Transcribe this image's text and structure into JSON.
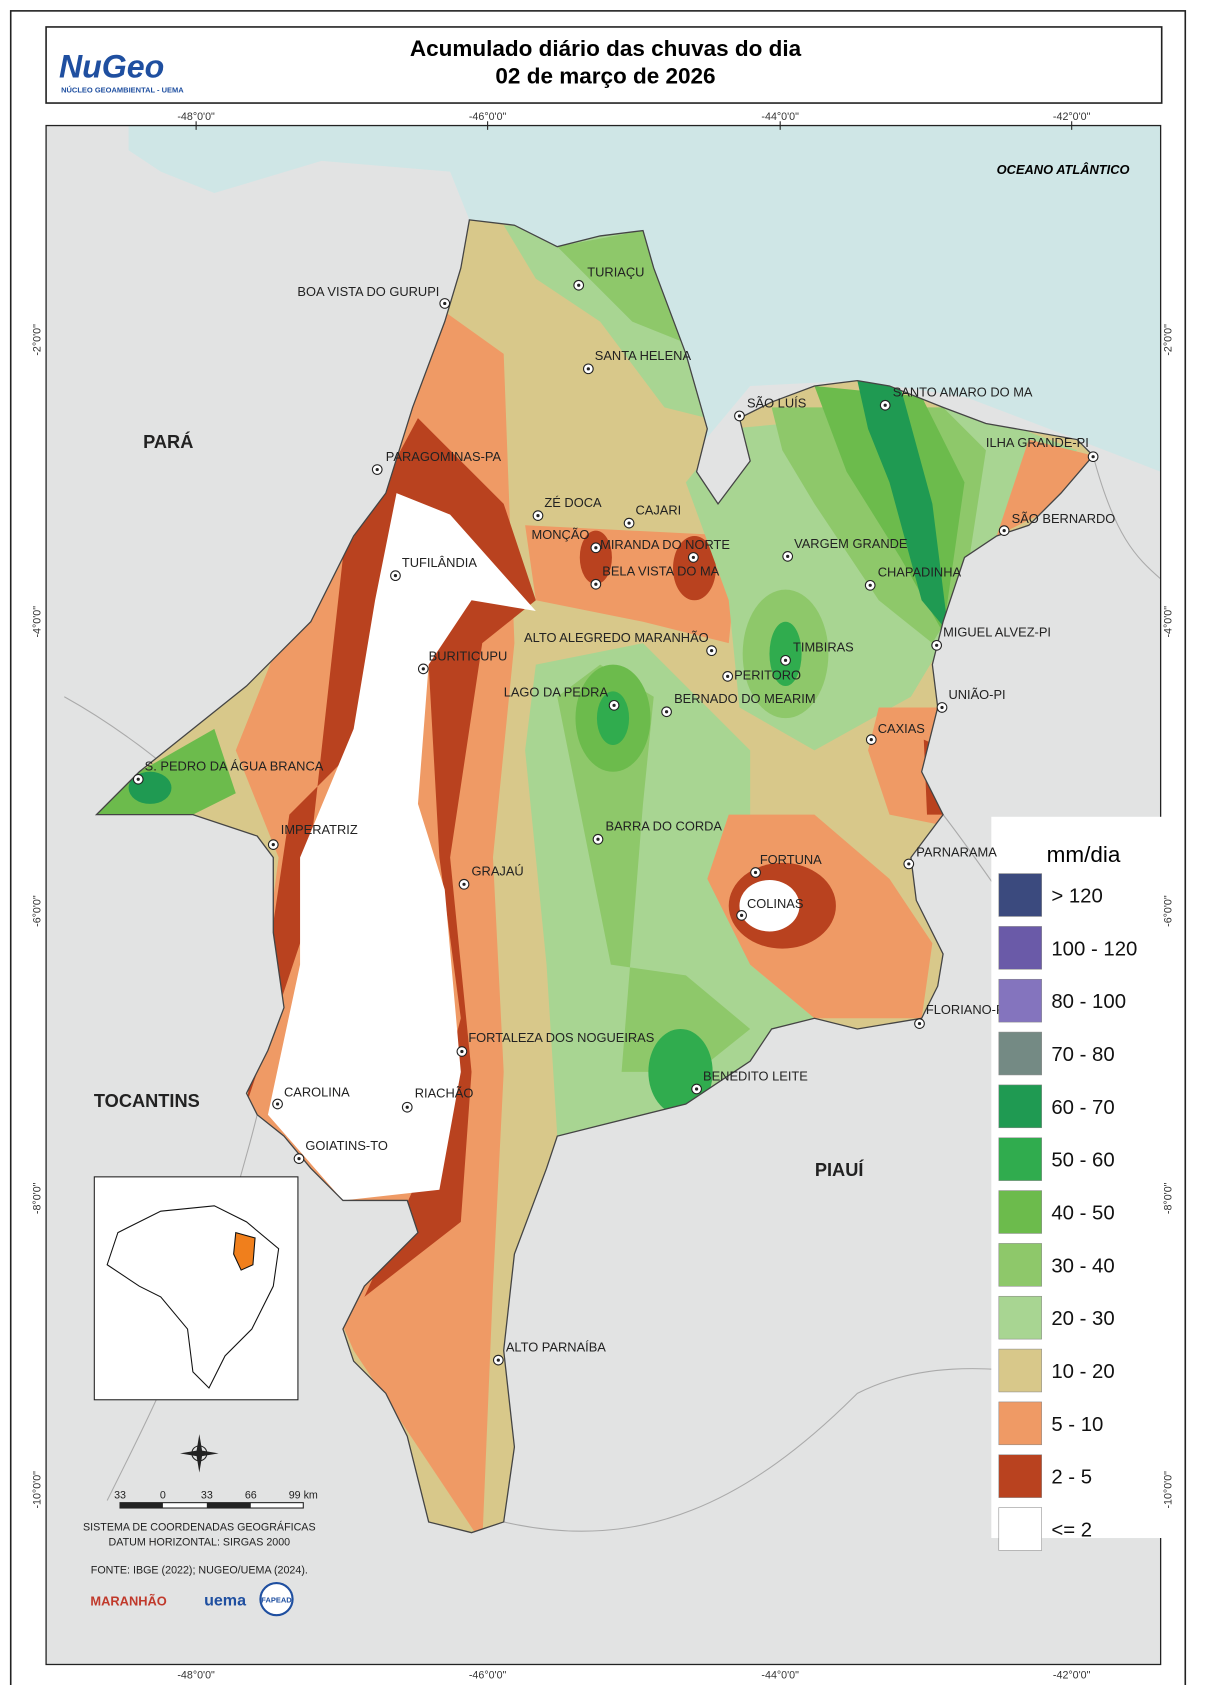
{
  "header": {
    "logo": "NuGeo",
    "logo_subtitle": "NÚCLEO GEOAMBIENTAL - UEMA",
    "title": "Acumulado diário das chuvas do dia",
    "date": "02 de março de 2026"
  },
  "map": {
    "longitude_labels": [
      "-48°0'0\"",
      "-46°0'0\"",
      "-44°0'0\"",
      "-42°0'0\""
    ],
    "latitude_labels": [
      "-2°0'0\"",
      "-4°0'0\"",
      "-6°0'0\"",
      "-8°0'0\"",
      "-10°0'0\""
    ],
    "ocean_label": "OCEANO ATLÂNTICO",
    "state_labels": [
      "PARÁ",
      "TOCANTINS",
      "PIAUÍ"
    ],
    "cities": [
      "TURIAÇU",
      "BOA VISTA DO GURUPI",
      "SANTA HELENA",
      "SÃO LUÍS",
      "SANTO AMARO DO MA",
      "ILHA GRANDE-PI",
      "PARAGOMINAS-PA",
      "ZÉ DOCA",
      "CAJARI",
      "SÃO BERNARDO",
      "MONÇÃO",
      "MIRANDA DO NORTE",
      "VARGEM GRANDE",
      "TUFILÂNDIA",
      "BELA VISTA DO MA",
      "CHAPADINHA",
      "MIGUEL ALVEZ-PI",
      "ALTO ALEGREDO MARANHÃO",
      "TIMBIRAS",
      "BURITICUPU",
      "PERITORO",
      "LAGO DA PEDRA",
      "BERNADO DO MEARIM",
      "UNIÃO-PI",
      "CAXIAS",
      "S. PEDRO DA ÁGUA BRANCA",
      "IMPERATRIZ",
      "BARRA DO CORDA",
      "PARNARAMA",
      "FORTUNA",
      "GRAJAÚ",
      "COLINAS",
      "FLORIANO-PI",
      "FORTALEZA DOS NOGUEIRAS",
      "BENEDITO LEITE",
      "CAROLINA",
      "RIACHÃO",
      "GOIATINS-TO",
      "ALTO PARNAÍBA"
    ]
  },
  "legend": {
    "title": "mm/dia",
    "classes": [
      {
        "label": "> 120",
        "color": "#3b4a7e"
      },
      {
        "label": "100 - 120",
        "color": "#6a5aa8"
      },
      {
        "label": "80 - 100",
        "color": "#8474be"
      },
      {
        "label": "70 - 80",
        "color": "#748a84"
      },
      {
        "label": "60 - 70",
        "color": "#1f9a52"
      },
      {
        "label": "50 - 60",
        "color": "#30ac4e"
      },
      {
        "label": "40 - 50",
        "color": "#6cbb4c"
      },
      {
        "label": "30 - 40",
        "color": "#8ec86a"
      },
      {
        "label": "20 - 30",
        "color": "#a8d592"
      },
      {
        "label": "10 - 20",
        "color": "#d8c88a"
      },
      {
        "label": "5 - 10",
        "color": "#ef9a65"
      },
      {
        "label": "2 - 5",
        "color": "#b9421f"
      },
      {
        "label": "<= 2",
        "color": "#ffffff"
      }
    ]
  },
  "footer": {
    "scale_labels": [
      "33",
      "0",
      "33",
      "66",
      "99 km"
    ],
    "coordinate_system": "SISTEMA DE COORDENADAS GEOGRÁFICAS",
    "datum": "DATUM HORIZONTAL: SIRGAS 2000",
    "source": "FONTE: IBGE (2022); NUGEO/UEMA (2024).",
    "logos": [
      "MARANHÃO",
      "uema",
      "FAPEAD"
    ]
  }
}
